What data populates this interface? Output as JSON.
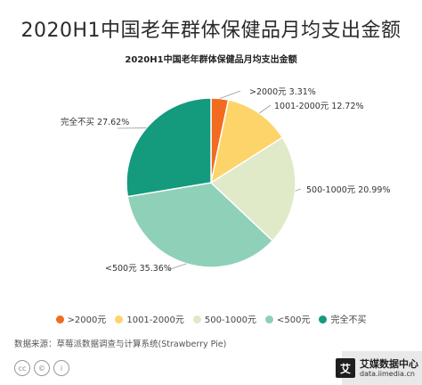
{
  "page": {
    "title": "2020H1中国老年群体保健品月均支出金额",
    "source": "数据来源：草莓派数据调查与计算系统(Strawberry Pie)",
    "license_icons": [
      "cc-icon",
      "cc-circle-icon",
      "person-icon"
    ],
    "brand": {
      "logo": "艾",
      "name": "艾媒数据中心",
      "url": "data.iimedia.cn"
    }
  },
  "chart_data": {
    "type": "pie",
    "title": "2020H1中国老年群体保健品月均支出金额",
    "slices": [
      {
        "label": ">2000元",
        "value": 3.31,
        "display": ">2000元 3.31%",
        "color": "#f26b21"
      },
      {
        "label": "1001-2000元",
        "value": 12.72,
        "display": "1001-2000元 12.72%",
        "color": "#fdd46a"
      },
      {
        "label": "500-1000元",
        "value": 20.99,
        "display": "500-1000元 20.99%",
        "color": "#e0e9c8"
      },
      {
        "label": "<500元",
        "value": 35.36,
        "display": "<500元 35.36%",
        "color": "#8fd0b8"
      },
      {
        "label": "完全不买",
        "value": 27.62,
        "display": "完全不买 27.62%",
        "color": "#149a7d"
      }
    ],
    "legend_position": "bottom"
  }
}
